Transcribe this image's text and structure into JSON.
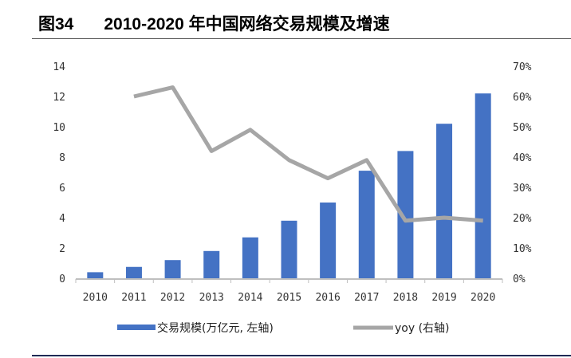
{
  "figure_label": "图34",
  "title": "2010-2020 年中国网络交易规模及增速",
  "chart_data": {
    "type": "bar+line",
    "categories": [
      "2010",
      "2011",
      "2012",
      "2013",
      "2014",
      "2015",
      "2016",
      "2017",
      "2018",
      "2019",
      "2020"
    ],
    "series": [
      {
        "name": "交易规模(万亿元, 左轴)",
        "type": "bar",
        "axis": "left",
        "color": "#4472c4",
        "values": [
          0.4,
          0.75,
          1.2,
          1.8,
          2.7,
          3.8,
          5.0,
          7.1,
          8.4,
          10.2,
          12.2
        ]
      },
      {
        "name": "yoy (右轴)",
        "type": "line",
        "axis": "right",
        "color": "#a6a6a6",
        "values": [
          null,
          0.6,
          0.63,
          0.42,
          0.49,
          0.39,
          0.33,
          0.39,
          0.19,
          0.2,
          0.19
        ]
      }
    ],
    "left_axis": {
      "ylim": [
        0,
        14
      ],
      "ticks": [
        "0",
        "2",
        "4",
        "6",
        "8",
        "10",
        "12",
        "14"
      ]
    },
    "right_axis": {
      "ylim": [
        0,
        0.7
      ],
      "ticks": [
        "0%",
        "10%",
        "20%",
        "30%",
        "40%",
        "50%",
        "60%",
        "70%"
      ]
    },
    "grid": false,
    "legend_position": "bottom"
  }
}
